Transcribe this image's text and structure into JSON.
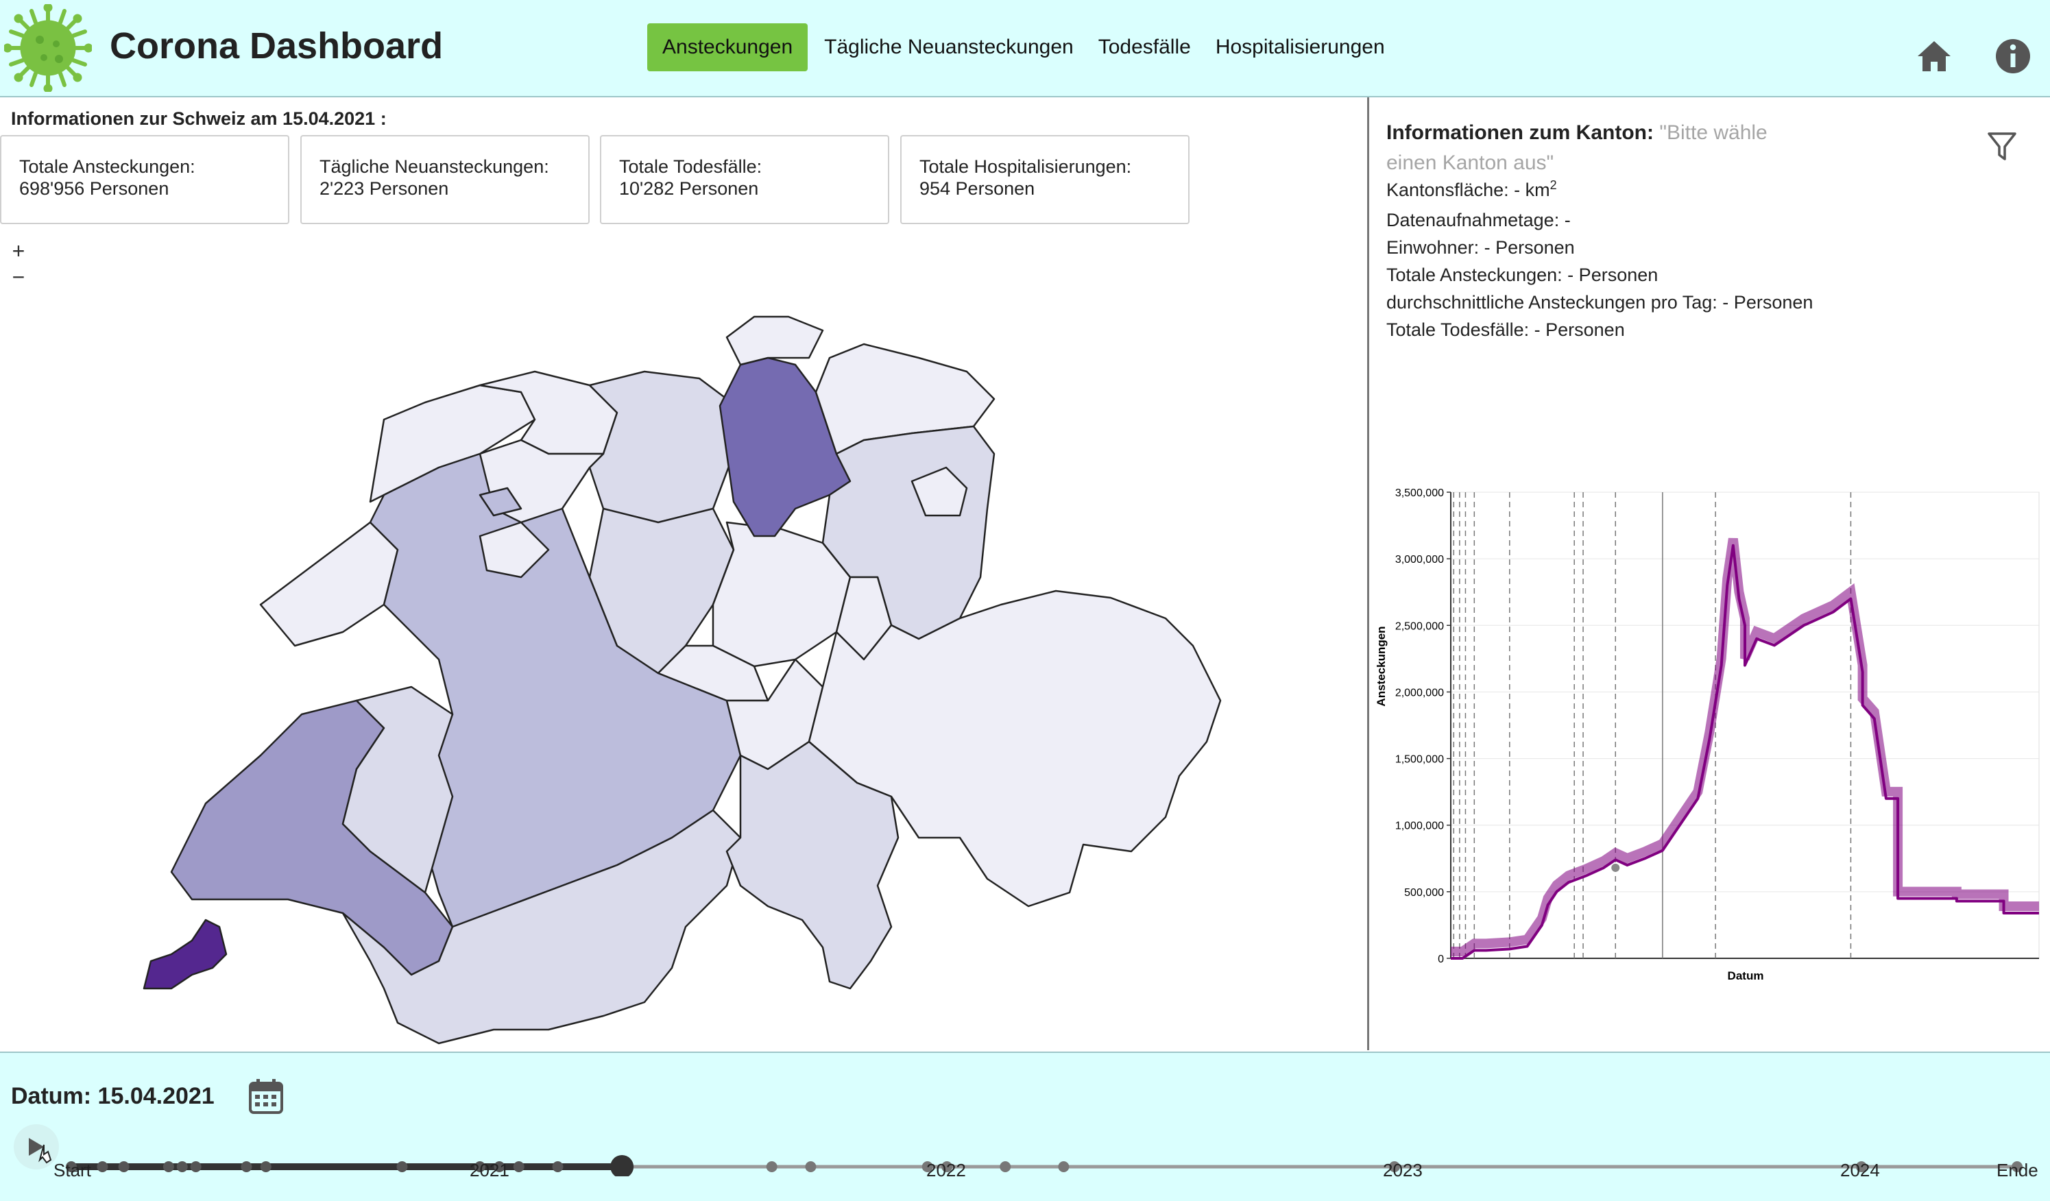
{
  "header": {
    "title": "Corona Dashboard",
    "nav": [
      {
        "label": "Ansteckungen",
        "active": true
      },
      {
        "label": "Tägliche Neuansteckungen",
        "active": false
      },
      {
        "label": "Todesfälle",
        "active": false
      },
      {
        "label": "Hospitalisierungen",
        "active": false
      }
    ],
    "icons": [
      "virus-logo-icon",
      "home-icon",
      "info-icon"
    ]
  },
  "swiss_info": {
    "title": "Informationen zur Schweiz am 15.04.2021 :",
    "cards": [
      {
        "label": "Totale Ansteckungen:",
        "value": "698'956 Personen"
      },
      {
        "label": "Tägliche Neuansteckungen:",
        "value": "2'223 Personen"
      },
      {
        "label": "Totale Todesfälle:",
        "value": "10'282 Personen"
      },
      {
        "label": "Totale Hospitalisierungen:",
        "value": "954 Personen"
      }
    ]
  },
  "map": {
    "zoom_in": "+",
    "zoom_out": "−",
    "colors": {
      "lightest": "#eeeef7",
      "light": "#dadbeb",
      "mid": "#bcbddc",
      "midDark": "#9e9ac8",
      "dark": "#756bb1",
      "darkest": "#54278f"
    }
  },
  "kanton": {
    "heading": "Informationen zum Kanton:",
    "hint": "\"Bitte wähle einen Kanton aus\"",
    "area_label": "Kantonsfläche: - km",
    "area_sup": "2",
    "lines": [
      "Datenaufnahmetage: -",
      "Einwohner: - Personen",
      "Totale Ansteckungen: - Personen",
      "durchschnittliche Ansteckungen pro Tag: - Personen",
      "Totale Todesfälle: - Personen"
    ]
  },
  "chart_data": {
    "type": "line",
    "title": "",
    "xlabel": "Datum",
    "ylabel": "Ansteckungen",
    "ylim": [
      0,
      3500000
    ],
    "yticks": [
      "0",
      "500,000",
      "1,000,000",
      "1,500,000",
      "2,000,000",
      "2,500,000",
      "3,000,000",
      "3,500,000"
    ],
    "series": [
      {
        "color": "#800080",
        "x": [
          0.0,
          0.02,
          0.03,
          0.04,
          0.06,
          0.1,
          0.13,
          0.155,
          0.165,
          0.18,
          0.2,
          0.23,
          0.26,
          0.28,
          0.3,
          0.33,
          0.36,
          0.42,
          0.44,
          0.46,
          0.47,
          0.48,
          0.49,
          0.5,
          0.5,
          0.52,
          0.55,
          0.6,
          0.65,
          0.68,
          0.7,
          0.7,
          0.72,
          0.74,
          0.76,
          0.76,
          0.78,
          0.78,
          0.86,
          0.86,
          0.94,
          0.94,
          1.0
        ],
        "y": [
          0,
          0,
          30000,
          60000,
          60000,
          70000,
          90000,
          250000,
          400000,
          500000,
          570000,
          620000,
          680000,
          740000,
          700000,
          750000,
          810000,
          1200000,
          1650000,
          2200000,
          2800000,
          3100000,
          2700000,
          2500000,
          2200000,
          2400000,
          2350000,
          2500000,
          2600000,
          2700000,
          2150000,
          1900000,
          1800000,
          1200000,
          1200000,
          450000,
          450000,
          450000,
          450000,
          430000,
          430000,
          340000,
          340000
        ]
      }
    ],
    "x_marks": [
      0.005,
      0.015,
      0.025,
      0.04,
      0.1,
      0.21,
      0.225,
      0.28,
      0.36,
      0.45,
      0.68
    ]
  },
  "footer": {
    "date_label": "Datum: 15.04.2021",
    "slider": {
      "value_fraction": 0.283,
      "labels": [
        "Start",
        "2021",
        "2022",
        "2023",
        "2024",
        "Ende"
      ],
      "event_markers": [
        0.0,
        0.016,
        0.027,
        0.05,
        0.057,
        0.064,
        0.09,
        0.1,
        0.17,
        0.21,
        0.22,
        0.23,
        0.25,
        0.36,
        0.38,
        0.44,
        0.45,
        0.48,
        0.51,
        0.68,
        0.92,
        1.0
      ]
    }
  }
}
